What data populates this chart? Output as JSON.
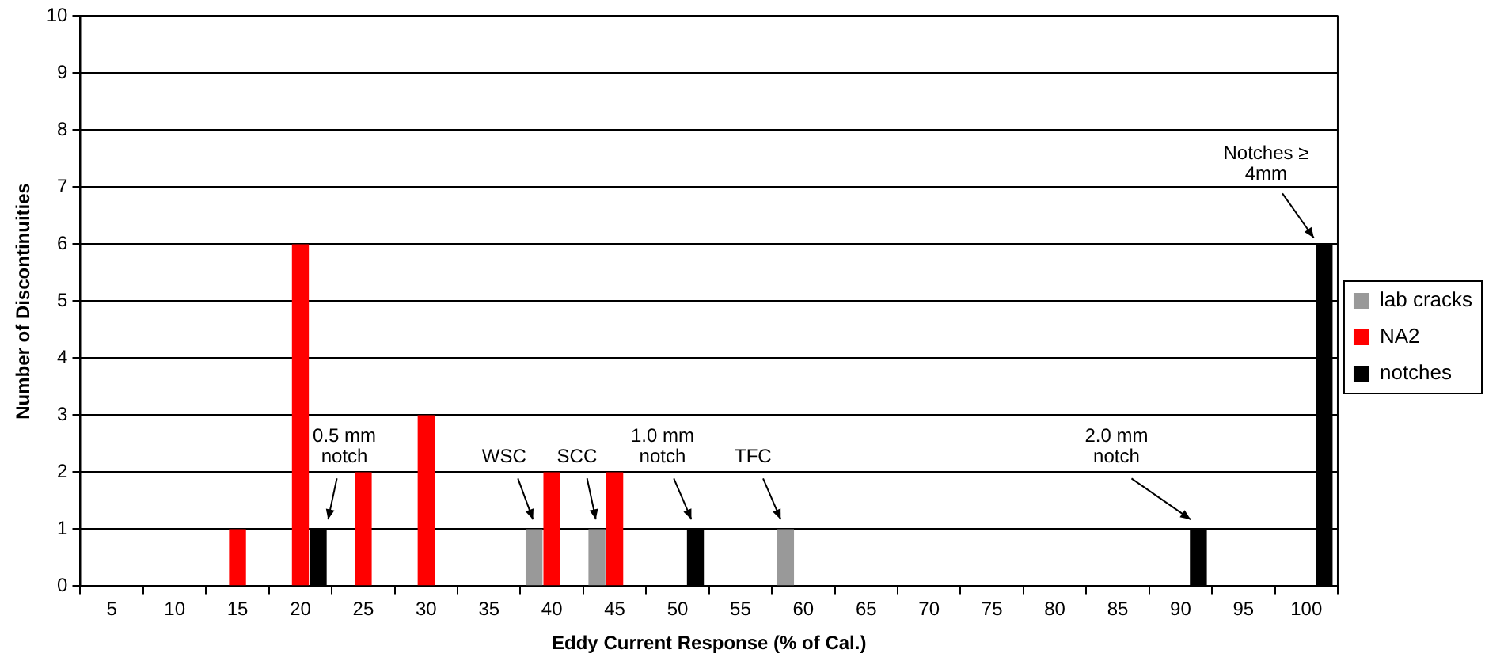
{
  "chart_data": {
    "type": "bar",
    "xlabel": "Eddy Current Response (% of Cal.)",
    "ylabel": "Number of Discontinuities",
    "categories": [
      "5",
      "10",
      "15",
      "20",
      "25",
      "30",
      "35",
      "40",
      "45",
      "50",
      "55",
      "60",
      "65",
      "70",
      "75",
      "80",
      "85",
      "90",
      "95",
      "100"
    ],
    "series": [
      {
        "name": "lab cracks",
        "color": "#999999",
        "values": [
          null,
          null,
          null,
          null,
          null,
          null,
          null,
          1,
          1,
          null,
          null,
          1,
          null,
          null,
          null,
          null,
          null,
          null,
          null,
          null
        ]
      },
      {
        "name": "NA2",
        "color": "#ff0000",
        "values": [
          null,
          null,
          1,
          6,
          2,
          3,
          null,
          2,
          2,
          null,
          null,
          null,
          null,
          null,
          null,
          null,
          null,
          null,
          null,
          null
        ]
      },
      {
        "name": "notches",
        "color": "#000000",
        "values": [
          null,
          null,
          null,
          1,
          null,
          null,
          null,
          null,
          null,
          1,
          null,
          null,
          null,
          null,
          null,
          null,
          null,
          1,
          null,
          6
        ]
      }
    ],
    "ylim": [
      0,
      10
    ],
    "yticks": [
      0,
      1,
      2,
      3,
      4,
      5,
      6,
      7,
      8,
      9,
      10
    ],
    "grid": "y",
    "legend": "right",
    "annotations": [
      "0.5 mm notch",
      "WSC",
      "SCC",
      "1.0 mm notch",
      "TFC",
      "2.0 mm notch",
      "Notches ≥ 4mm"
    ]
  }
}
